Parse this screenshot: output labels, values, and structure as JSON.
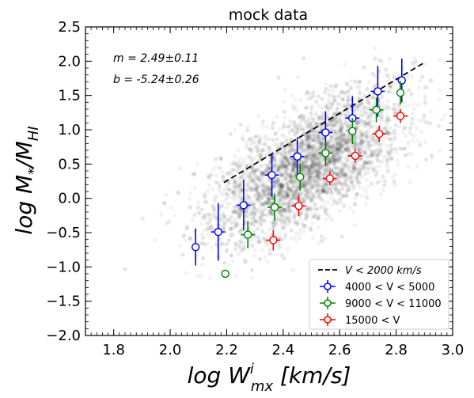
{
  "chart_data": {
    "type": "scatter",
    "title": "mock data",
    "xlabel_main": "log W",
    "xlabel_sup": "i",
    "xlabel_sub": "mx",
    "xlabel_units": " [km/s]",
    "ylabel_main": "log M",
    "ylabel_sub1": "*",
    "ylabel_sep": "/M",
    "ylabel_sub2": "HI",
    "xlim": [
      1.7,
      3.0
    ],
    "ylim": [
      -2.0,
      2.5
    ],
    "xticks": [
      "1.8",
      "2.0",
      "2.2",
      "2.4",
      "2.6",
      "2.8",
      "3.0"
    ],
    "xtick_values": [
      1.8,
      2.0,
      2.2,
      2.4,
      2.6,
      2.8,
      3.0
    ],
    "yticks": [
      "−2.0",
      "−1.5",
      "−1.0",
      "−0.5",
      "0.0",
      "0.5",
      "1.0",
      "1.5",
      "2.0",
      "2.5"
    ],
    "ytick_values": [
      -2.0,
      -1.5,
      -1.0,
      -0.5,
      0.0,
      0.5,
      1.0,
      1.5,
      2.0,
      2.5
    ],
    "annotations": [
      "m = 2.49±0.11",
      "b = -5.24±0.26"
    ],
    "fit_line": {
      "label": "V < 2000 km/s",
      "x": [
        2.19,
        2.9
      ],
      "y": [
        0.23,
        1.98
      ],
      "color": "#000000",
      "style": "dashed"
    },
    "series": [
      {
        "name": "4000 < V < 5000",
        "color": "#0000ff",
        "x": [
          2.09,
          2.17,
          2.26,
          2.36,
          2.45,
          2.55,
          2.645,
          2.735,
          2.82
        ],
        "y": [
          -0.71,
          -0.49,
          -0.1,
          0.34,
          0.61,
          0.96,
          1.17,
          1.56,
          1.72
        ],
        "yerr": [
          0.27,
          0.42,
          0.37,
          0.32,
          0.28,
          0.31,
          0.32,
          0.37,
          0.32
        ],
        "xerr": [
          0.0,
          0.025,
          0.025,
          0.025,
          0.025,
          0.025,
          0.025,
          0.025,
          0.0
        ]
      },
      {
        "name": "9000 < V < 11000",
        "color": "#008000",
        "x": [
          2.195,
          2.275,
          2.37,
          2.46,
          2.55,
          2.645,
          2.73,
          2.815
        ],
        "y": [
          -1.1,
          -0.53,
          -0.13,
          0.31,
          0.66,
          0.98,
          1.29,
          1.54
        ],
        "yerr": [
          0.0,
          0.2,
          0.2,
          0.2,
          0.18,
          0.19,
          0.18,
          0.17
        ],
        "xerr": [
          0.0,
          0.025,
          0.025,
          0.0,
          0.025,
          0.0,
          0.025,
          0.0
        ]
      },
      {
        "name": "15000 < V",
        "color": "#ff0000",
        "x": [
          2.365,
          2.455,
          2.565,
          2.655,
          2.74,
          2.815
        ],
        "y": [
          -0.61,
          -0.11,
          0.29,
          0.62,
          0.94,
          1.2
        ],
        "yerr": [
          0.15,
          0.15,
          0.1,
          0.1,
          0.12,
          0.1
        ],
        "xerr": [
          0.025,
          0.025,
          0.025,
          0.025,
          0.025,
          0.025
        ]
      }
    ],
    "background_cloud": {
      "description_counts": "dense grey point cloud",
      "color": "#000000"
    },
    "legend_position": "lower-right",
    "grid": false
  }
}
